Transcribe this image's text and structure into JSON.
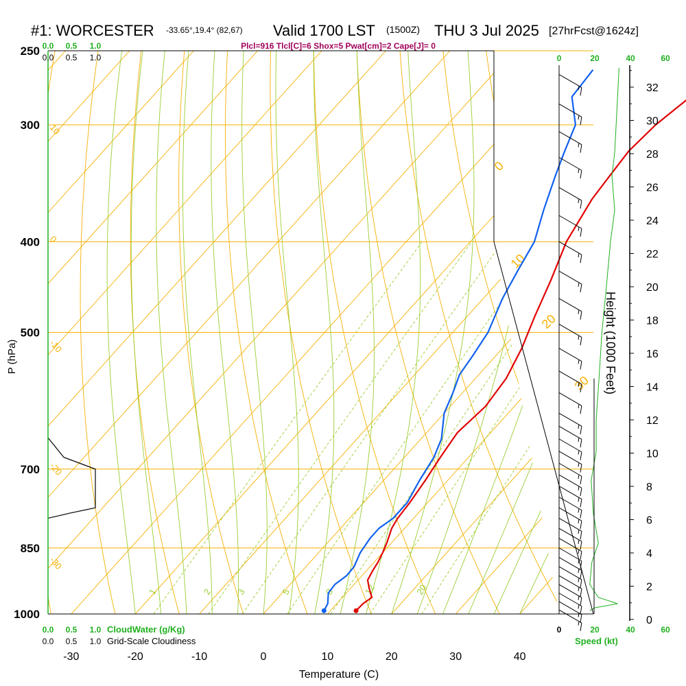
{
  "header": {
    "station": "#1: WORCESTER",
    "coords": "-33.65°,19.4° (82,67)",
    "valid": "Valid 1700 LST",
    "zulu": "(1500Z)",
    "date": "THU 3 Jul 2025",
    "fcst": "[27hrFcst@1624z]",
    "params": "Plcl=916 Tlcl[C]=6 Shox=5 Pwat[cm]=2 Cape[J]= 0"
  },
  "labels": {
    "ylabel": "P (hPa)",
    "xlabel": "Temperature (C)",
    "height_label": "Height (1000 Feet)",
    "cloudwater": "CloudWater (g/Kg)",
    "cloudiness": "Grid-Scale Cloudiness",
    "speed": "Speed (kt)"
  },
  "chart_data": {
    "type": "line",
    "title": "#1: WORCESTER Valid 1700 LST (1500Z) THU 3 Jul 2025",
    "xlabel": "Temperature (C)",
    "ylabel": "P (hPa)",
    "y_scale": "log",
    "x_ticks": [
      -30,
      -20,
      -10,
      0,
      10,
      20,
      30,
      40
    ],
    "xlim": [
      -34,
      36
    ],
    "ylim": [
      1000,
      250
    ],
    "p_ticks": [
      1000,
      850,
      700,
      500,
      400,
      300,
      250
    ],
    "isotherm_labels": [
      "-30",
      "-20",
      "-10",
      "0",
      "10",
      "20",
      "30"
    ],
    "isotherm_temps": [
      -30,
      -20,
      -10,
      0,
      10,
      20,
      30
    ],
    "mixing_ratio_labels": [
      "1",
      "2",
      "3",
      "5",
      "8",
      "12",
      "20"
    ],
    "mixing_ratios": [
      1,
      2,
      3,
      5,
      8,
      12,
      20
    ],
    "height_ticks": [
      0,
      2,
      4,
      6,
      8,
      10,
      12,
      14,
      16,
      18,
      20,
      22,
      24,
      26,
      28,
      30,
      32
    ],
    "top_scale_green": [
      "0.0",
      "0.5",
      "1.0"
    ],
    "top_scale_black": [
      "0.0",
      "0.5",
      "1.0"
    ],
    "bottom_scale_green": [
      "0.0",
      "0.5",
      "1.0"
    ],
    "bottom_scale_black": [
      "0.0",
      "0.5",
      "1.0"
    ],
    "speed_ticks": [
      "0",
      "20",
      "40",
      "60"
    ],
    "series": [
      {
        "name": "Temperature",
        "color": "#e00000",
        "points": [
          [
            14,
            992
          ],
          [
            14.1,
            975
          ],
          [
            14.6,
            960
          ],
          [
            13,
            940
          ],
          [
            11.5,
            920
          ],
          [
            11,
            900
          ],
          [
            10.6,
            880
          ],
          [
            10,
            860
          ],
          [
            9.3,
            840
          ],
          [
            8,
            810
          ],
          [
            7.5,
            790
          ],
          [
            7.2,
            760
          ],
          [
            6.5,
            720
          ],
          [
            5.6,
            680
          ],
          [
            4.8,
            640
          ],
          [
            5.5,
            600
          ],
          [
            4.8,
            560
          ],
          [
            3,
            520
          ],
          [
            0.5,
            480
          ],
          [
            -2,
            440
          ],
          [
            -5,
            400
          ],
          [
            -7,
            360
          ],
          [
            -7.5,
            340
          ],
          [
            -8,
            320
          ],
          [
            -7.5,
            300
          ],
          [
            -6,
            280
          ],
          [
            -3.5,
            260
          ]
        ]
      },
      {
        "name": "Dewpoint",
        "color": "#1060f0",
        "points": [
          [
            9,
            992
          ],
          [
            8.6,
            975
          ],
          [
            7.2,
            950
          ],
          [
            7,
            930
          ],
          [
            7.6,
            910
          ],
          [
            7.5,
            890
          ],
          [
            6.5,
            860
          ],
          [
            6,
            830
          ],
          [
            6,
            810
          ],
          [
            6.8,
            790
          ],
          [
            6.8,
            760
          ],
          [
            5.6,
            720
          ],
          [
            4.6,
            680
          ],
          [
            3.2,
            650
          ],
          [
            0,
            610
          ],
          [
            -1.5,
            580
          ],
          [
            -3,
            555
          ],
          [
            -3.6,
            530
          ],
          [
            -4.5,
            500
          ],
          [
            -7,
            460
          ],
          [
            -8.5,
            430
          ],
          [
            -10,
            400
          ],
          [
            -13,
            370
          ],
          [
            -16,
            340
          ],
          [
            -18,
            320
          ],
          [
            -20,
            300
          ],
          [
            -24.5,
            280
          ],
          [
            -25,
            262
          ]
        ]
      },
      {
        "name": "Cloudiness",
        "color": "#000000",
        "points": [
          [
            0.0,
            648
          ],
          [
            0.25,
            680
          ],
          [
            0.75,
            700
          ],
          [
            0.75,
            770
          ],
          [
            0.35,
            780
          ],
          [
            0.0,
            790
          ]
        ]
      }
    ],
    "height_profile": [
      [
        0.99,
        0.1
      ],
      [
        0.98,
        1.8
      ],
      [
        0.97,
        4.2
      ],
      [
        0.95,
        3.6
      ],
      [
        0.9,
        2.3
      ],
      [
        0.92,
        1.2
      ],
      [
        0.9,
        0.5
      ],
      [
        0.8,
        0.3
      ],
      [
        0.65,
        0.45
      ],
      [
        0.45,
        0.55
      ],
      [
        0.35,
        0.75
      ],
      [
        0.22,
        0.92
      ],
      [
        0.18,
        1.3
      ],
      [
        0.05,
        1.5
      ],
      [
        0.0,
        1.5
      ]
    ],
    "wind_barbs": [
      {
        "p": 990,
        "dir": 300,
        "spd": 15
      },
      {
        "p": 970,
        "dir": 300,
        "spd": 15
      },
      {
        "p": 950,
        "dir": 300,
        "spd": 15
      },
      {
        "p": 930,
        "dir": 300,
        "spd": 15
      },
      {
        "p": 910,
        "dir": 300,
        "spd": 15
      },
      {
        "p": 890,
        "dir": 300,
        "spd": 15
      },
      {
        "p": 870,
        "dir": 300,
        "spd": 15
      },
      {
        "p": 850,
        "dir": 300,
        "spd": 15
      },
      {
        "p": 830,
        "dir": 300,
        "spd": 15
      },
      {
        "p": 810,
        "dir": 300,
        "spd": 15
      },
      {
        "p": 790,
        "dir": 300,
        "spd": 15
      },
      {
        "p": 770,
        "dir": 300,
        "spd": 15
      },
      {
        "p": 750,
        "dir": 300,
        "spd": 15
      },
      {
        "p": 730,
        "dir": 300,
        "spd": 15
      },
      {
        "p": 710,
        "dir": 300,
        "spd": 15
      },
      {
        "p": 690,
        "dir": 300,
        "spd": 15
      },
      {
        "p": 670,
        "dir": 300,
        "spd": 15
      },
      {
        "p": 650,
        "dir": 300,
        "spd": 15
      },
      {
        "p": 630,
        "dir": 300,
        "spd": 15
      },
      {
        "p": 610,
        "dir": 300,
        "spd": 15
      },
      {
        "p": 580,
        "dir": 300,
        "spd": 15
      },
      {
        "p": 550,
        "dir": 300,
        "spd": 15
      },
      {
        "p": 520,
        "dir": 300,
        "spd": 15
      },
      {
        "p": 490,
        "dir": 300,
        "spd": 15
      },
      {
        "p": 460,
        "dir": 300,
        "spd": 15
      },
      {
        "p": 430,
        "dir": 300,
        "spd": 15
      },
      {
        "p": 400,
        "dir": 300,
        "spd": 15
      },
      {
        "p": 375,
        "dir": 300,
        "spd": 15
      },
      {
        "p": 350,
        "dir": 300,
        "spd": 15
      },
      {
        "p": 325,
        "dir": 300,
        "spd": 15
      },
      {
        "p": 305,
        "dir": 300,
        "spd": 15
      },
      {
        "p": 285,
        "dir": 300,
        "spd": 15
      },
      {
        "p": 265,
        "dir": 300,
        "spd": 15
      }
    ]
  },
  "colors": {
    "temperature": "#e00000",
    "dewpoint": "#1060f0",
    "isobar": "#f5b000",
    "dry_adiabat": "#f5b000",
    "moist_adiabat": "#9acd32",
    "mixing_ratio": "#9acd32",
    "green_text": "#20b020",
    "params_text": "#a0005a",
    "height_line": "#20b020"
  }
}
